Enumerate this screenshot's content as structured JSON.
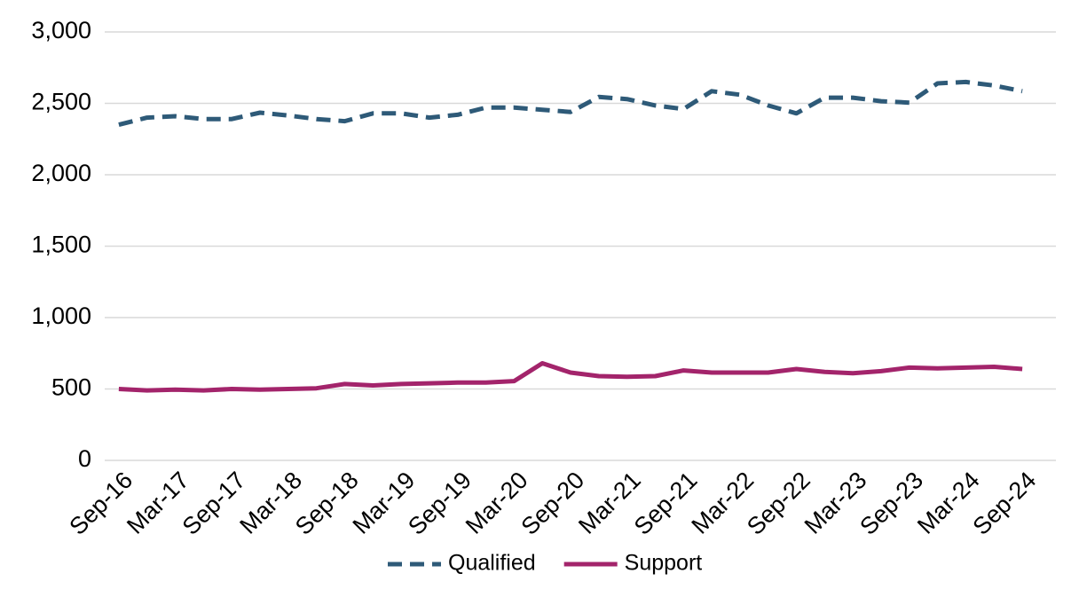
{
  "chart_data": {
    "type": "line",
    "categories": [
      "Sep-16",
      null,
      "Mar-17",
      null,
      "Sep-17",
      null,
      "Mar-18",
      null,
      "Sep-18",
      null,
      "Mar-19",
      null,
      "Sep-19",
      null,
      "Mar-20",
      null,
      "Sep-20",
      null,
      "Mar-21",
      null,
      "Sep-21",
      null,
      "Mar-22",
      null,
      "Sep-22",
      null,
      "Mar-23",
      null,
      "Sep-23",
      null,
      "Mar-24",
      null,
      "Sep-24"
    ],
    "series": [
      {
        "name": "Qualified",
        "color": "#2e5a78",
        "dashed": true,
        "values": [
          2350,
          2400,
          2410,
          2390,
          2390,
          2435,
          2415,
          2390,
          2375,
          2430,
          2430,
          2400,
          2420,
          2470,
          2470,
          2455,
          2440,
          2545,
          2530,
          2485,
          2460,
          2585,
          2560,
          2485,
          2430,
          2540,
          2540,
          2515,
          2505,
          2640,
          2650,
          2625,
          2585
        ]
      },
      {
        "name": "Support",
        "color": "#a3246b",
        "dashed": false,
        "values": [
          500,
          490,
          495,
          490,
          500,
          495,
          500,
          505,
          535,
          525,
          535,
          540,
          545,
          545,
          555,
          680,
          615,
          590,
          585,
          590,
          630,
          615,
          615,
          615,
          640,
          620,
          610,
          625,
          650,
          645,
          650,
          655,
          640
        ]
      }
    ],
    "ylim": [
      0,
      3000
    ],
    "yticks": [
      0,
      500,
      {
        "value": 1000,
        "label": "1,000"
      },
      {
        "value": 1500,
        "label": "1,500"
      },
      {
        "value": 2000,
        "label": "2,000"
      },
      {
        "value": 2500,
        "label": "2,500"
      },
      {
        "value": 3000,
        "label": "3,000"
      }
    ],
    "grid": true,
    "legend": "bottom"
  }
}
